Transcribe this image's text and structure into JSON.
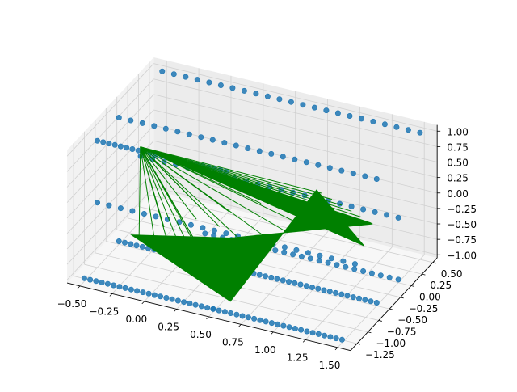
{
  "chart_data": {
    "type": "scatter",
    "projection": "3d",
    "title": "",
    "xlabel": "",
    "ylabel": "",
    "zlabel": "",
    "grid": true,
    "legend": "none",
    "colors": {
      "points": "#1f77b4",
      "quiver": "#008000",
      "pane_left": "#f2f2f2",
      "pane_back": "#ececec",
      "pane_floor": "#f7f7f7",
      "grid": "#d0d0d0"
    },
    "xlim": [
      -0.6,
      1.6
    ],
    "ylim": [
      -1.4,
      0.6
    ],
    "zlim": [
      -1.05,
      1.1
    ],
    "x_ticks": [
      "−0.50",
      "−0.25",
      "0.00",
      "0.25",
      "0.50",
      "0.75",
      "1.00",
      "1.25",
      "1.50"
    ],
    "y_ticks": [
      "−1.25",
      "−1.00",
      "−0.75",
      "−0.50",
      "−0.25",
      "0.00",
      "0.25",
      "0.50"
    ],
    "z_ticks": [
      "−1.00",
      "−0.75",
      "−0.50",
      "−0.25",
      "0.00",
      "0.25",
      "0.50",
      "0.75",
      "1.00"
    ],
    "series": [
      {
        "kind": "points",
        "segments": [
          {
            "x": [
              -0.5,
              1.5
            ],
            "y": [
              -1.0,
              -1.0
            ],
            "z": 0.0
          },
          {
            "x": [
              -0.5,
              1.5
            ],
            "y": [
              0.0,
              0.0
            ],
            "z": 0.0
          },
          {
            "x": [
              -0.5,
              1.5
            ],
            "y": [
              -0.5,
              -0.5
            ],
            "z": 1.0
          },
          {
            "x": [
              -0.5,
              1.5
            ],
            "y": [
              0.5,
              0.5
            ],
            "z": 1.0
          },
          {
            "x": [
              -0.5,
              0.5
            ],
            "y": [
              -1.0,
              -1.0
            ],
            "z": 1.0
          },
          {
            "x": [
              -0.5,
              0.5
            ],
            "y": [
              -0.5,
              -0.5
            ],
            "z": -1.0
          },
          {
            "x": [
              0.5,
              1.5
            ],
            "y": [
              -0.5,
              -0.5
            ],
            "z": -1.0
          },
          {
            "x": [
              0.0,
              1.5
            ],
            "y": [
              0.0,
              0.0
            ],
            "z": -1.0
          },
          {
            "x": [
              0.5,
              1.5
            ],
            "y": [
              -1.3,
              -1.3
            ],
            "z": -1.0
          },
          {
            "x": [
              -0.5,
              0.5
            ],
            "y": [
              -1.3,
              -1.3
            ],
            "z": -1.0
          }
        ]
      },
      {
        "kind": "quiver",
        "vertices": [
          {
            "x": -0.3,
            "y": -0.6,
            "z": 0.7
          },
          {
            "x": 1.3,
            "y": 0.0,
            "z": -0.2
          },
          {
            "x": 0.3,
            "y": -0.3,
            "z": -0.7
          },
          {
            "x": -0.2,
            "y": -1.1,
            "z": -0.3
          },
          {
            "x": 0.6,
            "y": -1.2,
            "z": -0.9
          },
          {
            "x": 1.0,
            "y": -0.4,
            "z": 0.5
          },
          {
            "x": 1.3,
            "y": -0.2,
            "z": -0.4
          }
        ]
      }
    ]
  }
}
